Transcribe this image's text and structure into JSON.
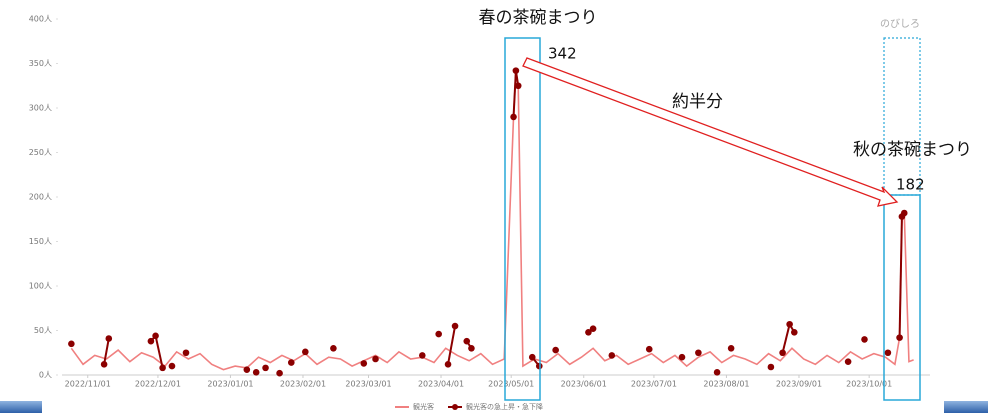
{
  "chart_data": {
    "type": "line",
    "x": [
      "2022/10/25",
      "2022/10/30",
      "2022/11/04",
      "2022/11/09",
      "2022/11/14",
      "2022/11/19",
      "2022/11/24",
      "2022/11/29",
      "2022/12/04",
      "2022/12/09",
      "2022/12/14",
      "2022/12/19",
      "2022/12/24",
      "2022/12/29",
      "2023/01/03",
      "2023/01/08",
      "2023/01/13",
      "2023/01/18",
      "2023/01/23",
      "2023/01/28",
      "2023/02/02",
      "2023/02/07",
      "2023/02/12",
      "2023/02/17",
      "2023/02/22",
      "2023/02/27",
      "2023/03/04",
      "2023/03/09",
      "2023/03/14",
      "2023/03/19",
      "2023/03/24",
      "2023/03/29",
      "2023/04/03",
      "2023/04/08",
      "2023/04/13",
      "2023/04/18",
      "2023/04/23",
      "2023/04/28",
      "2023/05/02",
      "2023/05/03",
      "2023/05/04",
      "2023/05/06",
      "2023/05/11",
      "2023/05/16",
      "2023/05/21",
      "2023/05/26",
      "2023/05/31",
      "2023/06/05",
      "2023/06/10",
      "2023/06/15",
      "2023/06/20",
      "2023/06/25",
      "2023/06/30",
      "2023/07/05",
      "2023/07/10",
      "2023/07/15",
      "2023/07/20",
      "2023/07/25",
      "2023/07/30",
      "2023/08/04",
      "2023/08/09",
      "2023/08/14",
      "2023/08/19",
      "2023/08/24",
      "2023/08/29",
      "2023/09/03",
      "2023/09/08",
      "2023/09/13",
      "2023/09/18",
      "2023/09/23",
      "2023/09/28",
      "2023/10/03",
      "2023/10/08",
      "2023/10/12",
      "2023/10/14",
      "2023/10/15",
      "2023/10/16",
      "2023/10/18",
      "2023/10/20"
    ],
    "series": [
      {
        "name": "観光客",
        "color": "#f08080",
        "values": [
          30,
          12,
          22,
          18,
          28,
          15,
          25,
          20,
          10,
          26,
          18,
          24,
          12,
          6,
          10,
          8,
          20,
          14,
          22,
          16,
          24,
          12,
          20,
          18,
          10,
          16,
          22,
          14,
          26,
          18,
          20,
          14,
          30,
          22,
          16,
          24,
          12,
          18,
          290,
          342,
          325,
          10,
          18,
          14,
          24,
          12,
          20,
          30,
          16,
          22,
          12,
          18,
          24,
          14,
          22,
          10,
          20,
          26,
          14,
          22,
          18,
          12,
          24,
          16,
          30,
          18,
          12,
          22,
          14,
          26,
          18,
          24,
          20,
          12,
          42,
          178,
          182,
          15,
          17
        ]
      },
      {
        "name": "観光客の急上昇・急下降",
        "color": "#8b0000",
        "x": [
          "2022/10/25",
          "2022/11/08",
          "2022/11/10",
          "2022/11/28",
          "2022/11/30",
          "2022/12/03",
          "2022/12/07",
          "2022/12/13",
          "2023/01/08",
          "2023/01/12",
          "2023/01/16",
          "2023/01/22",
          "2023/01/27",
          "2023/02/02",
          "2023/02/14",
          "2023/02/27",
          "2023/03/04",
          "2023/03/24",
          "2023/03/31",
          "2023/04/04",
          "2023/04/07",
          "2023/04/12",
          "2023/04/14",
          "2023/05/02",
          "2023/05/03",
          "2023/05/04",
          "2023/05/10",
          "2023/05/13",
          "2023/05/20",
          "2023/06/03",
          "2023/06/05",
          "2023/06/13",
          "2023/06/29",
          "2023/07/13",
          "2023/07/20",
          "2023/07/28",
          "2023/08/03",
          "2023/08/20",
          "2023/08/25",
          "2023/08/28",
          "2023/08/30",
          "2023/09/22",
          "2023/09/29",
          "2023/10/09",
          "2023/10/14",
          "2023/10/15",
          "2023/10/16"
        ],
        "values": [
          35,
          12,
          41,
          38,
          44,
          8,
          10,
          25,
          6,
          3,
          8,
          2,
          14,
          26,
          30,
          13,
          18,
          22,
          46,
          12,
          55,
          38,
          30,
          290,
          342,
          325,
          20,
          10,
          28,
          48,
          52,
          22,
          29,
          20,
          25,
          3,
          30,
          9,
          25,
          57,
          48,
          15,
          40,
          25,
          42,
          178,
          182
        ]
      }
    ],
    "xlim": [
      "2022/10/21",
      "2023/10/27"
    ],
    "xticks": [
      "2022/11/01",
      "2022/12/01",
      "2023/01/01",
      "2023/02/01",
      "2023/03/01",
      "2023/04/01",
      "2023/05/01",
      "2023/06/01",
      "2023/07/01",
      "2023/08/01",
      "2023/09/01",
      "2023/10/01"
    ],
    "ylim": [
      0,
      400
    ],
    "yticks": [
      {
        "value": 0,
        "label": "0人"
      },
      {
        "value": 50,
        "label": "50人"
      },
      {
        "value": 100,
        "label": "100人"
      },
      {
        "value": 150,
        "label": "150人"
      },
      {
        "value": 200,
        "label": "200人"
      },
      {
        "value": 250,
        "label": "250人"
      },
      {
        "value": 300,
        "label": "300人"
      },
      {
        "value": 350,
        "label": "350人"
      },
      {
        "value": 400,
        "label": "400人"
      }
    ],
    "grid": false,
    "annotations": [
      "春の茶碗まつり",
      "342",
      "約半分",
      "秋の茶碗まつり",
      "182",
      "のびしろ"
    ]
  }
}
